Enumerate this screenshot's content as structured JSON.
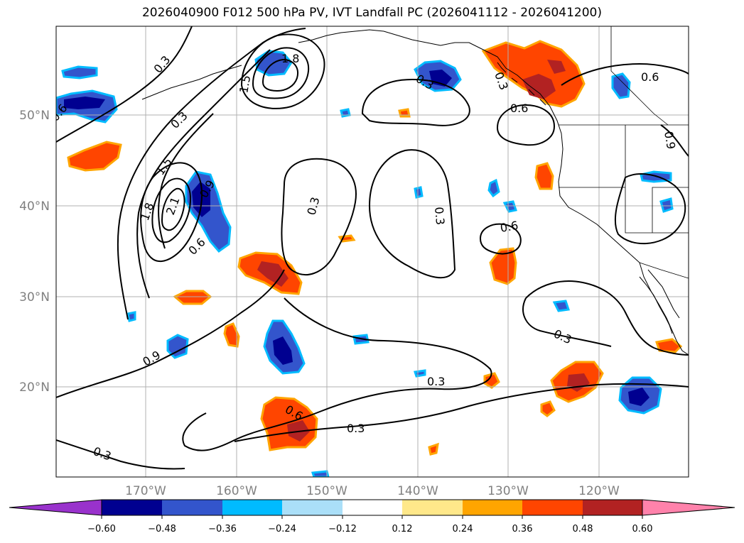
{
  "title": "2026040900 F012 500 hPa PV, IVT Landfall PC (2026041112 - 2026041200)",
  "lat_labels": [
    "50°N",
    "40°N",
    "30°N",
    "20°N"
  ],
  "lon_labels": [
    "170°W",
    "160°W",
    "150°W",
    "140°W",
    "130°W",
    "120°W"
  ],
  "colorbar": {
    "tick_labels": [
      "−0.60",
      "−0.48",
      "−0.36",
      "−0.24",
      "−0.12",
      "0.12",
      "0.24",
      "0.36",
      "0.48",
      "0.60"
    ],
    "colors": [
      "#9932cc",
      "#000090",
      "#3355cc",
      "#00bbff",
      "#aadff8",
      "#ffffff",
      "#ffe88a",
      "#ffa500",
      "#ff4500",
      "#b22222",
      "#ff82ab"
    ]
  },
  "contour_labels": [
    "0.3",
    "0.6",
    "0.9",
    "1.5",
    "1.8",
    "2.1",
    "0.3",
    "0.6",
    "0.3",
    "0.9",
    "0.3",
    "0.3",
    "0.6",
    "0.6",
    "0.3",
    "0.3",
    "0.3",
    "0.6",
    "0.6",
    "0.9",
    "0.3",
    "0.3",
    "1.5",
    "1.8"
  ],
  "colors": {
    "grid": "#b0b0b0",
    "coast": "#000000",
    "contour": "#000000"
  }
}
